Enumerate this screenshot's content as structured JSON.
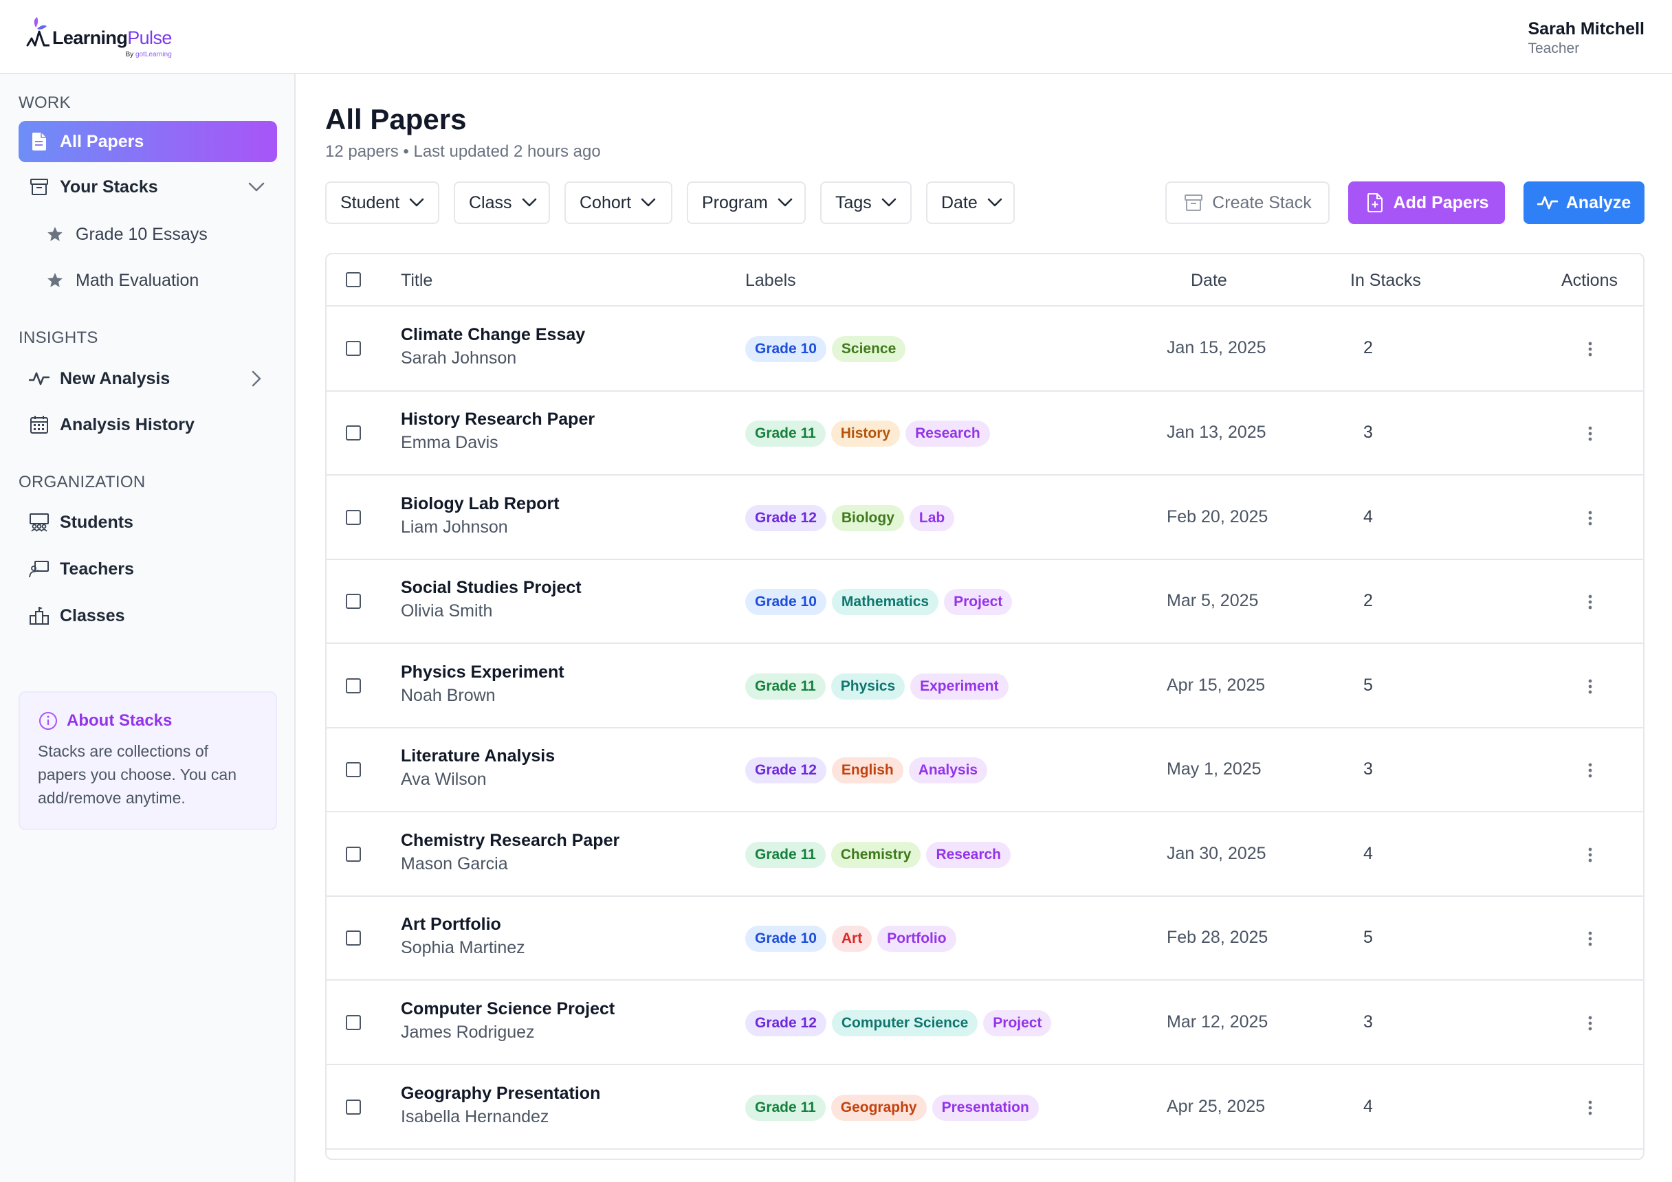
{
  "app": {
    "logo_main": "Learning",
    "logo_accent": "Pulse",
    "logo_sub_prefix": "By ",
    "logo_sub_brand": "gotLearning"
  },
  "user": {
    "name": "Sarah Mitchell",
    "role": "Teacher"
  },
  "sidebar": {
    "work_heading": "WORK",
    "all_papers": "All Papers",
    "your_stacks": "Your Stacks",
    "stacks": [
      "Grade 10 Essays",
      "Math Evaluation"
    ],
    "insights_heading": "INSIGHTS",
    "new_analysis": "New Analysis",
    "analysis_history": "Analysis History",
    "organization_heading": "ORGANIZATION",
    "students": "Students",
    "teachers": "Teachers",
    "classes": "Classes",
    "about_title": "About Stacks",
    "about_text": "Stacks are collections of papers you choose. You can add/remove anytime."
  },
  "main": {
    "title": "All Papers",
    "subtitle": "12 papers • Last updated 2 hours ago",
    "filters": [
      "Student",
      "Class",
      "Cohort",
      "Program",
      "Tags",
      "Date"
    ],
    "create_stack": "Create Stack",
    "add_papers": "Add Papers",
    "analyze": "Analyze"
  },
  "table": {
    "headers": {
      "title": "Title",
      "labels": "Labels",
      "date": "Date",
      "in_stacks": "In Stacks",
      "actions": "Actions"
    },
    "rows": [
      {
        "title": "Climate Change Essay",
        "author": "Sarah Johnson",
        "tags": [
          "Grade 10",
          "Science"
        ],
        "date": "Jan 15, 2025",
        "stacks": "2"
      },
      {
        "title": "History Research Paper",
        "author": "Emma Davis",
        "tags": [
          "Grade 11",
          "History",
          "Research"
        ],
        "date": "Jan 13, 2025",
        "stacks": "3"
      },
      {
        "title": "Biology Lab Report",
        "author": "Liam Johnson",
        "tags": [
          "Grade 12",
          "Biology",
          "Lab"
        ],
        "date": "Feb 20, 2025",
        "stacks": "4"
      },
      {
        "title": "Social Studies Project",
        "author": "Olivia Smith",
        "tags": [
          "Grade 10",
          "Mathematics",
          "Project"
        ],
        "date": "Mar 5, 2025",
        "stacks": "2"
      },
      {
        "title": "Physics Experiment",
        "author": "Noah Brown",
        "tags": [
          "Grade 11",
          "Physics",
          "Experiment"
        ],
        "date": "Apr 15, 2025",
        "stacks": "5"
      },
      {
        "title": "Literature Analysis",
        "author": "Ava Wilson",
        "tags": [
          "Grade 12",
          "English",
          "Analysis"
        ],
        "date": "May 1, 2025",
        "stacks": "3"
      },
      {
        "title": "Chemistry Research Paper",
        "author": "Mason Garcia",
        "tags": [
          "Grade 11",
          "Chemistry",
          "Research"
        ],
        "date": "Jan 30, 2025",
        "stacks": "4"
      },
      {
        "title": "Art Portfolio",
        "author": "Sophia Martinez",
        "tags": [
          "Grade 10",
          "Art",
          "Portfolio"
        ],
        "date": "Feb 28, 2025",
        "stacks": "5"
      },
      {
        "title": "Computer Science Project",
        "author": "James Rodriguez",
        "tags": [
          "Grade 12",
          "Computer Science",
          "Project"
        ],
        "date": "Mar 12, 2025",
        "stacks": "3"
      },
      {
        "title": "Geography Presentation",
        "author": "Isabella Hernandez",
        "tags": [
          "Grade 11",
          "Geography",
          "Presentation"
        ],
        "date": "Apr 25, 2025",
        "stacks": "4"
      }
    ]
  },
  "tag_colors": {
    "Grade 10": {
      "bg": "#e0ecff",
      "fg": "#1d4ed8"
    },
    "Grade 11": {
      "bg": "#dcf5e6",
      "fg": "#15803d"
    },
    "Grade 12": {
      "bg": "#ebe5ff",
      "fg": "#6d28d9"
    },
    "Science": {
      "bg": "#e3f7d6",
      "fg": "#3f7a1c"
    },
    "History": {
      "bg": "#fdebd3",
      "fg": "#b45309"
    },
    "Research": {
      "bg": "#f3e5fd",
      "fg": "#9333ea"
    },
    "Biology": {
      "bg": "#e3f7d6",
      "fg": "#3f7a1c"
    },
    "Lab": {
      "bg": "#f3e5fd",
      "fg": "#9333ea"
    },
    "Mathematics": {
      "bg": "#d8f5f2",
      "fg": "#0f766e"
    },
    "Project": {
      "bg": "#f3e5fd",
      "fg": "#9333ea"
    },
    "Physics": {
      "bg": "#d8f5f2",
      "fg": "#0f766e"
    },
    "Experiment": {
      "bg": "#f3e5fd",
      "fg": "#9333ea"
    },
    "English": {
      "bg": "#fde4dc",
      "fg": "#c2410c"
    },
    "Analysis": {
      "bg": "#f3e5fd",
      "fg": "#9333ea"
    },
    "Chemistry": {
      "bg": "#e3f7d6",
      "fg": "#3f7a1c"
    },
    "Art": {
      "bg": "#fde4e4",
      "fg": "#dc2626"
    },
    "Portfolio": {
      "bg": "#f3e5fd",
      "fg": "#9333ea"
    },
    "Computer Science": {
      "bg": "#d8f5f2",
      "fg": "#0f766e"
    },
    "Geography": {
      "bg": "#fde4dc",
      "fg": "#c2410c"
    },
    "Presentation": {
      "bg": "#f3e5fd",
      "fg": "#9333ea"
    }
  }
}
